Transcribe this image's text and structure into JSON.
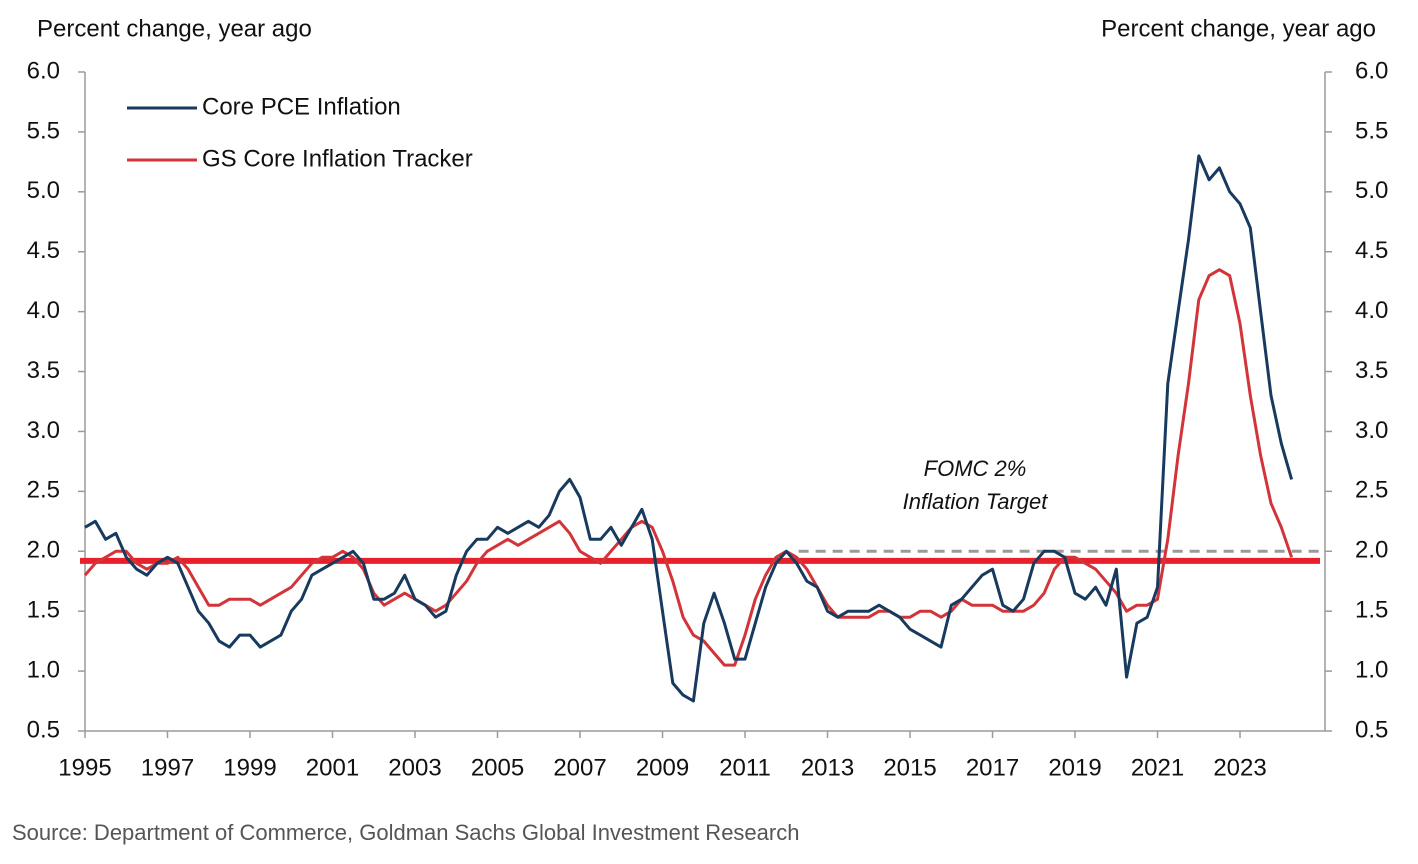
{
  "chart_data": {
    "type": "line",
    "y_label": "Percent change, year ago",
    "y2_label": "Percent change, year ago",
    "source": "Source: Department of Commerce, Goldman Sachs Global Investment Research",
    "annotation": [
      "FOMC 2%",
      "Inflation Target"
    ],
    "x": [
      1995,
      1995.25,
      1995.5,
      1995.75,
      1996,
      1996.25,
      1996.5,
      1996.75,
      1997,
      1997.25,
      1997.5,
      1997.75,
      1998,
      1998.25,
      1998.5,
      1998.75,
      1999,
      1999.25,
      1999.5,
      1999.75,
      2000,
      2000.25,
      2000.5,
      2000.75,
      2001,
      2001.25,
      2001.5,
      2001.75,
      2002,
      2002.25,
      2002.5,
      2002.75,
      2003,
      2003.25,
      2003.5,
      2003.75,
      2004,
      2004.25,
      2004.5,
      2004.75,
      2005,
      2005.25,
      2005.5,
      2005.75,
      2006,
      2006.25,
      2006.5,
      2006.75,
      2007,
      2007.25,
      2007.5,
      2007.75,
      2008,
      2008.25,
      2008.5,
      2008.75,
      2009,
      2009.25,
      2009.5,
      2009.75,
      2010,
      2010.25,
      2010.5,
      2010.75,
      2011,
      2011.25,
      2011.5,
      2011.75,
      2012,
      2012.25,
      2012.5,
      2012.75,
      2013,
      2013.25,
      2013.5,
      2013.75,
      2014,
      2014.25,
      2014.5,
      2014.75,
      2015,
      2015.25,
      2015.5,
      2015.75,
      2016,
      2016.25,
      2016.5,
      2016.75,
      2017,
      2017.25,
      2017.5,
      2017.75,
      2018,
      2018.25,
      2018.5,
      2018.75,
      2019,
      2019.25,
      2019.5,
      2019.75,
      2020,
      2020.25,
      2020.5,
      2020.75,
      2021,
      2021.25,
      2021.5,
      2021.75,
      2022,
      2022.25,
      2022.5,
      2022.75,
      2023,
      2023.25,
      2023.5,
      2023.75,
      2024,
      2024.25
    ],
    "series": [
      {
        "name": "Core PCE Inflation",
        "color": "#173a5e",
        "values": [
          2.2,
          2.25,
          2.1,
          2.15,
          1.95,
          1.85,
          1.8,
          1.9,
          1.95,
          1.9,
          1.7,
          1.5,
          1.4,
          1.25,
          1.2,
          1.3,
          1.3,
          1.2,
          1.25,
          1.3,
          1.5,
          1.6,
          1.8,
          1.85,
          1.9,
          1.95,
          2.0,
          1.9,
          1.6,
          1.6,
          1.65,
          1.8,
          1.6,
          1.55,
          1.45,
          1.5,
          1.8,
          2.0,
          2.1,
          2.1,
          2.2,
          2.15,
          2.2,
          2.25,
          2.2,
          2.3,
          2.5,
          2.6,
          2.45,
          2.1,
          2.1,
          2.2,
          2.05,
          2.2,
          2.35,
          2.1,
          1.5,
          0.9,
          0.8,
          0.75,
          1.4,
          1.65,
          1.4,
          1.1,
          1.1,
          1.4,
          1.7,
          1.9,
          2.0,
          1.9,
          1.75,
          1.7,
          1.5,
          1.45,
          1.5,
          1.5,
          1.5,
          1.55,
          1.5,
          1.45,
          1.35,
          1.3,
          1.25,
          1.2,
          1.55,
          1.6,
          1.7,
          1.8,
          1.85,
          1.55,
          1.5,
          1.6,
          1.9,
          2.0,
          2.0,
          1.95,
          1.65,
          1.6,
          1.7,
          1.55,
          1.85,
          0.95,
          1.4,
          1.45,
          1.7,
          3.4,
          4.0,
          4.6,
          5.3,
          5.1,
          5.2,
          5.0,
          4.9,
          4.7,
          4.0,
          3.3,
          2.9,
          2.6
        ]
      },
      {
        "name": "GS Core Inflation Tracker",
        "color": "#d2343a",
        "values": [
          1.8,
          1.9,
          1.95,
          2.0,
          2.0,
          1.9,
          1.85,
          1.9,
          1.9,
          1.95,
          1.85,
          1.7,
          1.55,
          1.55,
          1.6,
          1.6,
          1.6,
          1.55,
          1.6,
          1.65,
          1.7,
          1.8,
          1.9,
          1.95,
          1.95,
          2.0,
          1.95,
          1.85,
          1.65,
          1.55,
          1.6,
          1.65,
          1.6,
          1.55,
          1.5,
          1.55,
          1.65,
          1.75,
          1.9,
          2.0,
          2.05,
          2.1,
          2.05,
          2.1,
          2.15,
          2.2,
          2.25,
          2.15,
          2.0,
          1.95,
          1.9,
          2.0,
          2.1,
          2.2,
          2.25,
          2.2,
          2.0,
          1.75,
          1.45,
          1.3,
          1.25,
          1.15,
          1.05,
          1.05,
          1.3,
          1.6,
          1.8,
          1.95,
          2.0,
          1.95,
          1.85,
          1.7,
          1.55,
          1.45,
          1.45,
          1.45,
          1.45,
          1.5,
          1.5,
          1.45,
          1.45,
          1.5,
          1.5,
          1.45,
          1.5,
          1.6,
          1.55,
          1.55,
          1.55,
          1.5,
          1.5,
          1.5,
          1.55,
          1.65,
          1.85,
          1.95,
          1.95,
          1.9,
          1.85,
          1.75,
          1.65,
          1.5,
          1.55,
          1.55,
          1.6,
          2.1,
          2.8,
          3.4,
          4.1,
          4.3,
          4.35,
          4.3,
          3.9,
          3.3,
          2.8,
          2.4,
          2.2,
          1.95
        ]
      }
    ],
    "reference_lines": [
      {
        "value": 1.92,
        "color": "#e8202a"
      },
      {
        "value": 2.0,
        "color": "#9a9a9a",
        "dashed": true,
        "x_start": 2012.3
      }
    ],
    "xlim": [
      1995,
      2025.06
    ],
    "xticks": [
      1995,
      1997,
      1999,
      2001,
      2003,
      2005,
      2007,
      2009,
      2011,
      2013,
      2015,
      2017,
      2019,
      2021,
      2023
    ],
    "ylim": [
      0.5,
      6.0
    ],
    "yticks": [
      {
        "value": 0.5,
        "label": "0.5"
      },
      {
        "value": 1,
        "label": "1.0"
      },
      {
        "value": 1.5,
        "label": "1.5"
      },
      {
        "value": 2,
        "label": "2.0"
      },
      {
        "value": 2.5,
        "label": "2.5"
      },
      {
        "value": 3,
        "label": "3.0"
      },
      {
        "value": 3.5,
        "label": "3.5"
      },
      {
        "value": 4,
        "label": "4.0"
      },
      {
        "value": 4.5,
        "label": "4.5"
      },
      {
        "value": 5,
        "label": "5.0"
      },
      {
        "value": 5.5,
        "label": "5.5"
      },
      {
        "value": 6,
        "label": "6.0"
      }
    ],
    "y2lim": [
      0.5,
      6.0
    ],
    "y2ticks": [
      {
        "value": 0.5,
        "label": "0.5"
      },
      {
        "value": 1,
        "label": "1.0"
      },
      {
        "value": 1.5,
        "label": "1.5"
      },
      {
        "value": 2,
        "label": "2.0"
      },
      {
        "value": 2.5,
        "label": "2.5"
      },
      {
        "value": 3,
        "label": "3.0"
      },
      {
        "value": 3.5,
        "label": "3.5"
      },
      {
        "value": 4,
        "label": "4.0"
      },
      {
        "value": 4.5,
        "label": "4.5"
      },
      {
        "value": 5,
        "label": "5.0"
      },
      {
        "value": 5.5,
        "label": "5.5"
      },
      {
        "value": 6,
        "label": "6.0"
      }
    ]
  }
}
